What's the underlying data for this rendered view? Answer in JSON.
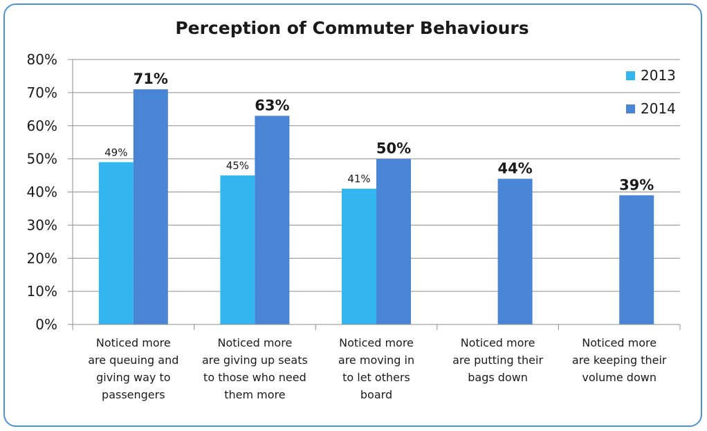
{
  "chart_data": {
    "type": "bar",
    "title": "Perception of Commuter Behaviours",
    "xlabel": "",
    "ylabel": "",
    "ylim": [
      0,
      80
    ],
    "yticks": [
      "0%",
      "10%",
      "20%",
      "30%",
      "40%",
      "50%",
      "60%",
      "70%",
      "80%"
    ],
    "grid": true,
    "legend_position": "top-right",
    "categories": [
      [
        "Noticed more",
        "are queuing and",
        "giving way to",
        "passengers"
      ],
      [
        "Noticed more",
        "are giving up seats",
        "to those who need",
        "them more"
      ],
      [
        "Noticed more",
        "are moving in",
        "to let others",
        "board"
      ],
      [
        "Noticed more",
        "are putting their",
        "bags down"
      ],
      [
        "Noticed more",
        "are keeping their",
        "volume down"
      ]
    ],
    "series": [
      {
        "name": "2013",
        "color": "#33b5f0",
        "values": [
          49,
          45,
          41,
          null,
          null
        ],
        "labels": [
          "49%",
          "45%",
          "41%",
          "",
          ""
        ]
      },
      {
        "name": "2014",
        "color": "#4a84d4",
        "values": [
          71,
          63,
          50,
          44,
          39
        ],
        "labels": [
          "71%",
          "63%",
          "50%",
          "44%",
          "39%"
        ]
      }
    ]
  }
}
